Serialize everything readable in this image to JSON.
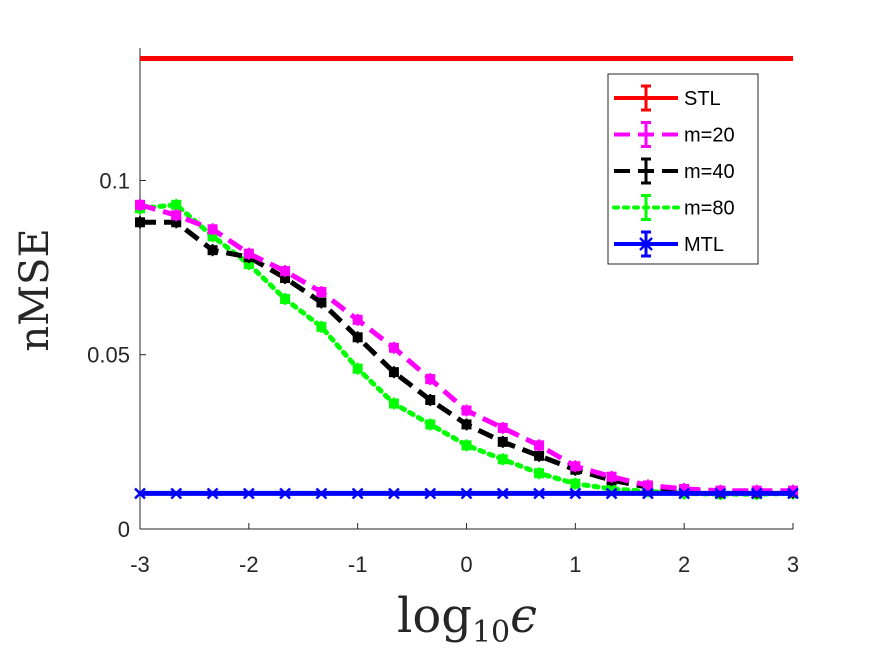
{
  "chart_data": {
    "type": "line",
    "xlabel": "log",
    "xlabel_sub": "10",
    "xlabel_sym": "ϵ",
    "ylabel": "nMSE",
    "xlim": [
      -3,
      3
    ],
    "ylim": [
      0,
      0.138
    ],
    "x_ticks": [
      -3,
      -2,
      -1,
      0,
      1,
      2,
      3
    ],
    "x_tick_labels": [
      "-3",
      "-2",
      "-1",
      "0",
      "1",
      "2",
      "3"
    ],
    "y_ticks": [
      0,
      0.05,
      0.1
    ],
    "y_tick_labels": [
      "0",
      "0.05",
      "0.1"
    ],
    "legend_position": "top-right",
    "x": [
      -3,
      -2.667,
      -2.333,
      -2,
      -1.667,
      -1.333,
      -1,
      -0.667,
      -0.333,
      0,
      0.333,
      0.667,
      1,
      1.333,
      1.667,
      2,
      2.333,
      2.667,
      3
    ],
    "series": [
      {
        "name": "STL",
        "color": "#ff0000",
        "dash": "solid",
        "marker": "none",
        "values": [
          0.135,
          0.135,
          0.135,
          0.135,
          0.135,
          0.135,
          0.135,
          0.135,
          0.135,
          0.135,
          0.135,
          0.135,
          0.135,
          0.135,
          0.135,
          0.135,
          0.135,
          0.135,
          0.135
        ]
      },
      {
        "name": "m=20",
        "color": "#ff00ff",
        "dash": "dash",
        "marker": "square",
        "values": [
          0.093,
          0.09,
          0.086,
          0.079,
          0.074,
          0.068,
          0.06,
          0.052,
          0.043,
          0.034,
          0.029,
          0.024,
          0.018,
          0.015,
          0.0125,
          0.0115,
          0.011,
          0.011,
          0.011
        ]
      },
      {
        "name": "m=40",
        "color": "#000000",
        "dash": "dash",
        "marker": "square",
        "values": [
          0.088,
          0.088,
          0.08,
          0.078,
          0.072,
          0.065,
          0.055,
          0.045,
          0.037,
          0.03,
          0.025,
          0.021,
          0.017,
          0.014,
          0.012,
          0.0112,
          0.0105,
          0.0105,
          0.0105
        ]
      },
      {
        "name": "m=80",
        "color": "#00ff00",
        "dash": "dot",
        "marker": "square",
        "values": [
          0.092,
          0.093,
          0.084,
          0.076,
          0.066,
          0.058,
          0.046,
          0.036,
          0.03,
          0.024,
          0.02,
          0.016,
          0.013,
          0.0115,
          0.0108,
          0.0102,
          0.01,
          0.01,
          0.0102
        ]
      },
      {
        "name": "MTL",
        "color": "#0000ff",
        "dash": "solid",
        "marker": "x",
        "values": [
          0.0102,
          0.0102,
          0.0102,
          0.0102,
          0.0102,
          0.0102,
          0.0102,
          0.0102,
          0.0102,
          0.0102,
          0.0102,
          0.0102,
          0.0102,
          0.0102,
          0.0102,
          0.0102,
          0.0102,
          0.0102,
          0.0102
        ]
      }
    ]
  }
}
